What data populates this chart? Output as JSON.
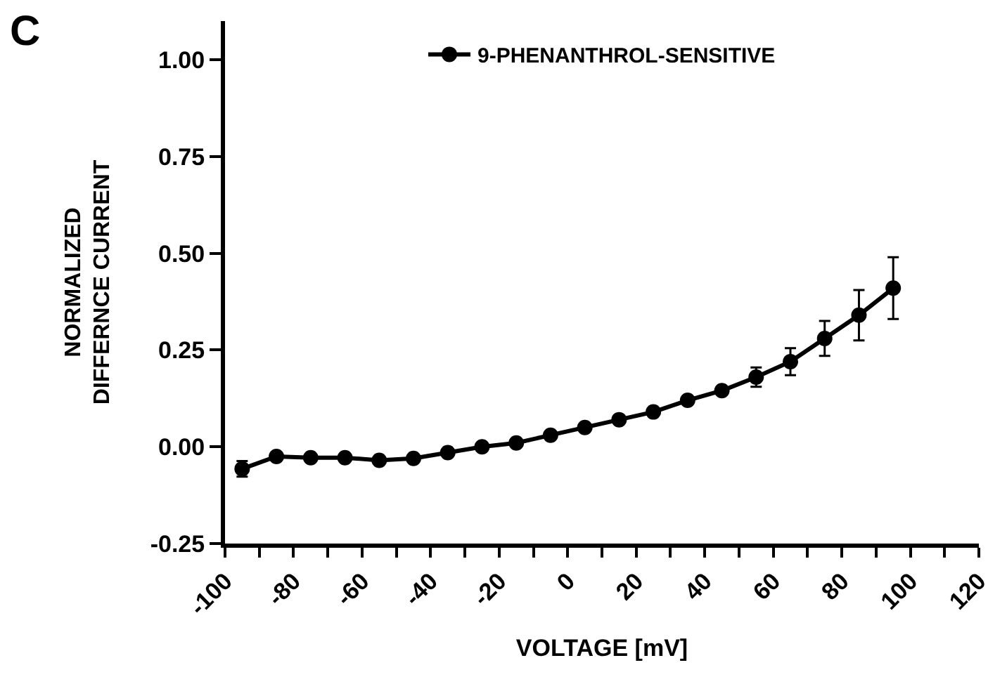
{
  "chart_data": {
    "type": "line",
    "xlabel": "VOLTAGE [mV]",
    "ylabel": "NORMALIZED\nDIFFERNCE CURRENT",
    "annotations": [
      "C"
    ],
    "x": [
      -95,
      -85,
      -75,
      -65,
      -55,
      -45,
      -35,
      -25,
      -15,
      -5,
      5,
      15,
      25,
      35,
      45,
      55,
      65,
      75,
      85,
      95
    ],
    "series": [
      {
        "name": "9-PHENANTHROL-SENSITIVE",
        "color": "#000000",
        "values": [
          -0.057,
          -0.025,
          -0.028,
          -0.028,
          -0.035,
          -0.03,
          -0.015,
          0.0,
          0.01,
          0.03,
          0.05,
          0.07,
          0.09,
          0.12,
          0.145,
          0.18,
          0.22,
          0.28,
          0.34,
          0.41
        ],
        "errors": [
          0.02,
          null,
          null,
          null,
          null,
          null,
          null,
          null,
          null,
          null,
          null,
          null,
          null,
          null,
          null,
          0.025,
          0.035,
          0.045,
          0.065,
          0.08
        ]
      }
    ],
    "xlim": [
      -100,
      120
    ],
    "xticks": [
      -100,
      {
        "value": -90,
        "label": null
      },
      -80,
      {
        "value": -70,
        "label": null
      },
      -60,
      {
        "value": -50,
        "label": null
      },
      -40,
      {
        "value": -30,
        "label": null
      },
      -20,
      {
        "value": -10,
        "label": null
      },
      0,
      {
        "value": 10,
        "label": null
      },
      20,
      {
        "value": 30,
        "label": null
      },
      40,
      {
        "value": 50,
        "label": null
      },
      60,
      {
        "value": 70,
        "label": null
      },
      80,
      {
        "value": 90,
        "label": null
      },
      100,
      {
        "value": 110,
        "label": null
      },
      120
    ],
    "ylim": [
      -0.25,
      1.1
    ],
    "yticks": [
      {
        "value": -0.25,
        "label": "-0.25"
      },
      {
        "value": 0,
        "label": "0.00"
      },
      {
        "value": 0.25,
        "label": "0.25"
      },
      {
        "value": 0.5,
        "label": "0.50"
      },
      {
        "value": 0.75,
        "label": "0.75"
      },
      {
        "value": 1,
        "label": "1.00"
      }
    ],
    "legend": "top",
    "marker": "circle",
    "line_style": "solid"
  }
}
